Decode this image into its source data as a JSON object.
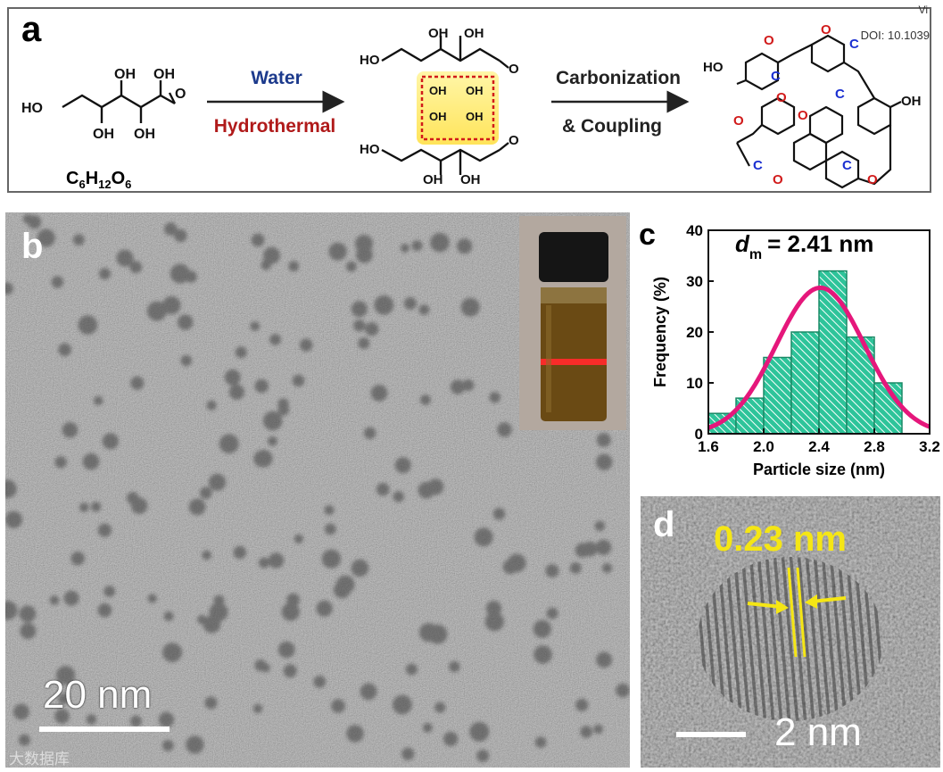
{
  "doi": "DOI: 10.1039",
  "corner_text": "Vi",
  "panel_a": {
    "label": "a",
    "formula": {
      "C": "C",
      "c_sub": "6",
      "H": "H",
      "h_sub": "12",
      "O": "O",
      "o_sub": "6"
    },
    "step1": {
      "top": "Water",
      "bottom": "Hydrothermal"
    },
    "step2": {
      "top": "Carbonization",
      "bottom": "& Coupling"
    },
    "atoms": {
      "oh": "OH",
      "ho": "HO",
      "o": "O",
      "c": "C"
    }
  },
  "panel_b": {
    "label": "b",
    "scale_bar": "20 nm",
    "watermark": "大数据库"
  },
  "panel_c": {
    "label": "c",
    "annotation": {
      "d": "d",
      "sub": "m",
      "rest": "= 2.41 nm"
    },
    "chart_data": {
      "type": "bar",
      "xlabel": "Particle size (nm)",
      "ylabel": "Frequency (%)",
      "xlim": [
        1.6,
        3.2
      ],
      "ylim": [
        0,
        40
      ],
      "x_ticks": [
        "1.6",
        "2.0",
        "2.4",
        "2.8",
        "3.2"
      ],
      "y_ticks": [
        "0",
        "10",
        "20",
        "30",
        "40"
      ],
      "bins": [
        {
          "from": 1.6,
          "to": 1.8,
          "value": 4
        },
        {
          "from": 1.8,
          "to": 2.0,
          "value": 7
        },
        {
          "from": 2.0,
          "to": 2.2,
          "value": 15
        },
        {
          "from": 2.2,
          "to": 2.4,
          "value": 20
        },
        {
          "from": 2.4,
          "to": 2.6,
          "value": 32
        },
        {
          "from": 2.6,
          "to": 2.8,
          "value": 19
        },
        {
          "from": 2.8,
          "to": 3.0,
          "value": 10
        }
      ],
      "fit": {
        "type": "gaussian",
        "peak_x": 2.41,
        "peak_y": 28.7,
        "color": "#e5177b"
      },
      "bar_color": "#2ec49a"
    }
  },
  "panel_d": {
    "label": "d",
    "spacing": "0.23 nm",
    "scale_bar": "2 nm"
  },
  "colors": {
    "blue_label": "#1c3a8c",
    "red_label": "#b01a1a",
    "atom_o": "#d11a1a",
    "atom_c": "#1a2fd1",
    "yellow": "#f5e614"
  }
}
